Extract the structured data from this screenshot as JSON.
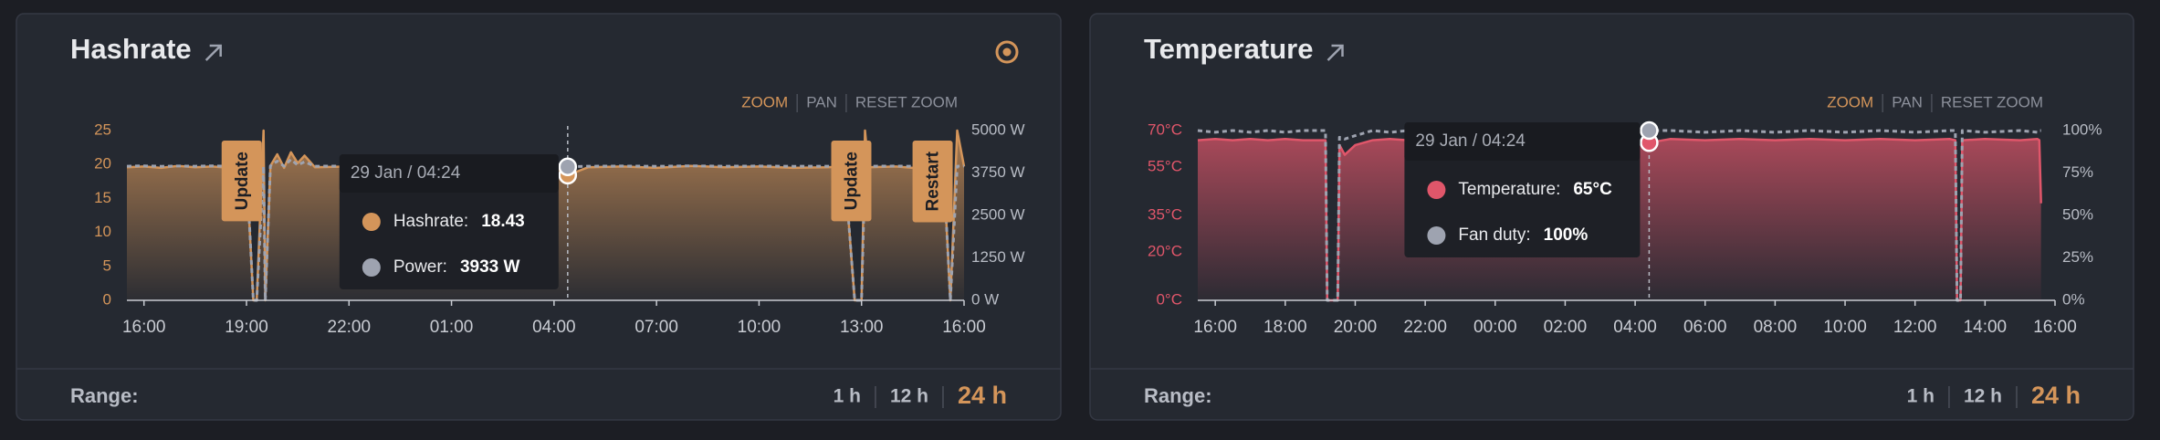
{
  "chart_data": [
    {
      "type": "line",
      "title": "Hashrate",
      "controls": [
        "ZOOM",
        "PAN",
        "RESET ZOOM"
      ],
      "x": [
        -0.5,
        0,
        0.5,
        1,
        1.5,
        2,
        2.5,
        3,
        3.2,
        3.3,
        3.5,
        3.55,
        3.7,
        3.9,
        4.1,
        4.3,
        4.5,
        4.7,
        5,
        6,
        7,
        8,
        9,
        10,
        11,
        12,
        12.4,
        13,
        14,
        15,
        16,
        17,
        18,
        19,
        20,
        20.5,
        20.8,
        21,
        21.1,
        21.2,
        22,
        22.5,
        23,
        23.4,
        23.6,
        23.8,
        24
      ],
      "xlim": [
        -0.5,
        24
      ],
      "xticks": [
        {
          "value": 0,
          "label": "16:00"
        },
        {
          "value": 3,
          "label": "19:00"
        },
        {
          "value": 6,
          "label": "22:00"
        },
        {
          "value": 9,
          "label": "01:00"
        },
        {
          "value": 12,
          "label": "04:00"
        },
        {
          "value": 15,
          "label": "07:00"
        },
        {
          "value": 18,
          "label": "10:00"
        },
        {
          "value": 21,
          "label": "13:00"
        },
        {
          "value": 24,
          "label": "16:00"
        }
      ],
      "ylim": [
        0,
        25
      ],
      "yticks": [
        0,
        5,
        10,
        15,
        20,
        25
      ],
      "y2lim": [
        0,
        5000
      ],
      "y2ticks": [
        {
          "value": 0,
          "label": "0 W"
        },
        {
          "value": 1250,
          "label": "1250 W"
        },
        {
          "value": 2500,
          "label": "2500 W"
        },
        {
          "value": 3750,
          "label": "3750 W"
        },
        {
          "value": 5000,
          "label": "5000 W"
        }
      ],
      "series": [
        {
          "color": "#d4955a",
          "area": true,
          "values": [
            19.6,
            19.7,
            19.5,
            19.8,
            19.6,
            19.7,
            19.5,
            19.6,
            0,
            0,
            25,
            0,
            19.8,
            21.5,
            19.5,
            21.8,
            20.2,
            21.3,
            19.6,
            19.7,
            19.5,
            19.8,
            19.6,
            19.5,
            19.7,
            19.6,
            18.43,
            19.6,
            19.7,
            19.5,
            19.8,
            19.6,
            19.7,
            19.5,
            19.6,
            19.7,
            0,
            0,
            25,
            19.6,
            19.7,
            19.5,
            19.6,
            19.8,
            0,
            25,
            19.7
          ]
        },
        {
          "color": "#9ea3b0",
          "axis": "y2",
          "dashed": true,
          "values": [
            3950,
            3960,
            3945,
            3955,
            3950,
            3960,
            3945,
            3950,
            0,
            0,
            3950,
            0,
            3960,
            4100,
            3950,
            4150,
            3980,
            4080,
            3950,
            3955,
            3945,
            3960,
            3950,
            3945,
            3955,
            3950,
            3933,
            3950,
            3955,
            3945,
            3960,
            3950,
            3955,
            3945,
            3950,
            3955,
            0,
            0,
            3950,
            3950,
            3955,
            3945,
            3950,
            3960,
            0,
            3950,
            3955
          ]
        }
      ],
      "annotations": [
        {
          "x": 2.86,
          "text": "Update"
        },
        {
          "x": 20.7,
          "text": "Update"
        },
        {
          "x": 23.08,
          "text": "Restart"
        }
      ],
      "tooltip": {
        "x": 12.4,
        "title": "29 Jan / 04:24",
        "items": [
          {
            "label": "Hashrate:",
            "value_label": "18.43"
          },
          {
            "label": "Power:",
            "value_label": "3933 W"
          }
        ]
      },
      "range_label": "Range:",
      "range_options": [
        "1 h",
        "12 h",
        "24 h"
      ]
    },
    {
      "type": "line",
      "title": "Temperature",
      "controls": [
        "ZOOM",
        "PAN",
        "RESET ZOOM"
      ],
      "x": [
        -0.5,
        0,
        0.5,
        1,
        1.5,
        2,
        2.5,
        3,
        3.15,
        3.2,
        3.5,
        3.55,
        3.7,
        4,
        4.5,
        5,
        5.5,
        6,
        7,
        8,
        9,
        10,
        11,
        12,
        12.4,
        13,
        14,
        15,
        16,
        17,
        18,
        19,
        20,
        21,
        21.15,
        21.2,
        21.3,
        21.35,
        22,
        23,
        23.5,
        23.55,
        23.6
      ],
      "xlim": [
        -0.5,
        24
      ],
      "xticks": [
        {
          "value": 0,
          "label": "16:00"
        },
        {
          "value": 2,
          "label": "18:00"
        },
        {
          "value": 4,
          "label": "20:00"
        },
        {
          "value": 6,
          "label": "22:00"
        },
        {
          "value": 8,
          "label": "00:00"
        },
        {
          "value": 10,
          "label": "02:00"
        },
        {
          "value": 12,
          "label": "04:00"
        },
        {
          "value": 14,
          "label": "06:00"
        },
        {
          "value": 16,
          "label": "08:00"
        },
        {
          "value": 18,
          "label": "10:00"
        },
        {
          "value": 20,
          "label": "12:00"
        },
        {
          "value": 22,
          "label": "14:00"
        },
        {
          "value": 24,
          "label": "16:00"
        }
      ],
      "ylim": [
        0,
        70
      ],
      "yticks": [
        {
          "value": 0,
          "label": "0°C"
        },
        {
          "value": 20,
          "label": "20°C"
        },
        {
          "value": 35,
          "label": "35°C"
        },
        {
          "value": 55,
          "label": "55°C"
        },
        {
          "value": 70,
          "label": "70°C"
        }
      ],
      "y2lim": [
        0,
        100
      ],
      "y2ticks": [
        {
          "value": 0,
          "label": "0%"
        },
        {
          "value": 25,
          "label": "25%"
        },
        {
          "value": 50,
          "label": "50%"
        },
        {
          "value": 75,
          "label": "75%"
        },
        {
          "value": 100,
          "label": "100%"
        }
      ],
      "series": [
        {
          "color": "#e0566a",
          "area": true,
          "values": [
            66,
            66.5,
            66,
            66.5,
            66,
            66.5,
            66,
            66,
            66,
            0,
            0,
            64,
            60,
            64,
            66,
            66.5,
            66,
            66.5,
            66,
            66.5,
            66,
            66.5,
            66,
            66.5,
            65,
            66.5,
            66,
            66.5,
            66,
            66.5,
            66,
            66.5,
            66,
            66.5,
            66,
            0,
            0,
            66,
            66.5,
            66,
            66.5,
            66,
            40
          ]
        },
        {
          "color": "#9ea3b0",
          "axis": "y2",
          "dashed": true,
          "values": [
            100,
            99,
            100,
            99,
            100,
            99,
            100,
            100,
            100,
            0,
            0,
            96,
            95,
            97,
            100,
            99,
            100,
            99,
            100,
            99,
            100,
            99,
            100,
            99,
            100,
            100,
            99,
            100,
            99,
            100,
            99,
            100,
            99,
            100,
            100,
            0,
            0,
            100,
            99,
            100,
            99,
            100,
            100
          ]
        }
      ],
      "tooltip": {
        "x": 12.4,
        "title": "29 Jan / 04:24",
        "items": [
          {
            "label": "Temperature:",
            "value_label": "65°C"
          },
          {
            "label": "Fan duty:",
            "value_label": "100%"
          }
        ]
      },
      "range_label": "Range:",
      "range_options": [
        "1 h",
        "12 h",
        "24 h"
      ]
    }
  ]
}
